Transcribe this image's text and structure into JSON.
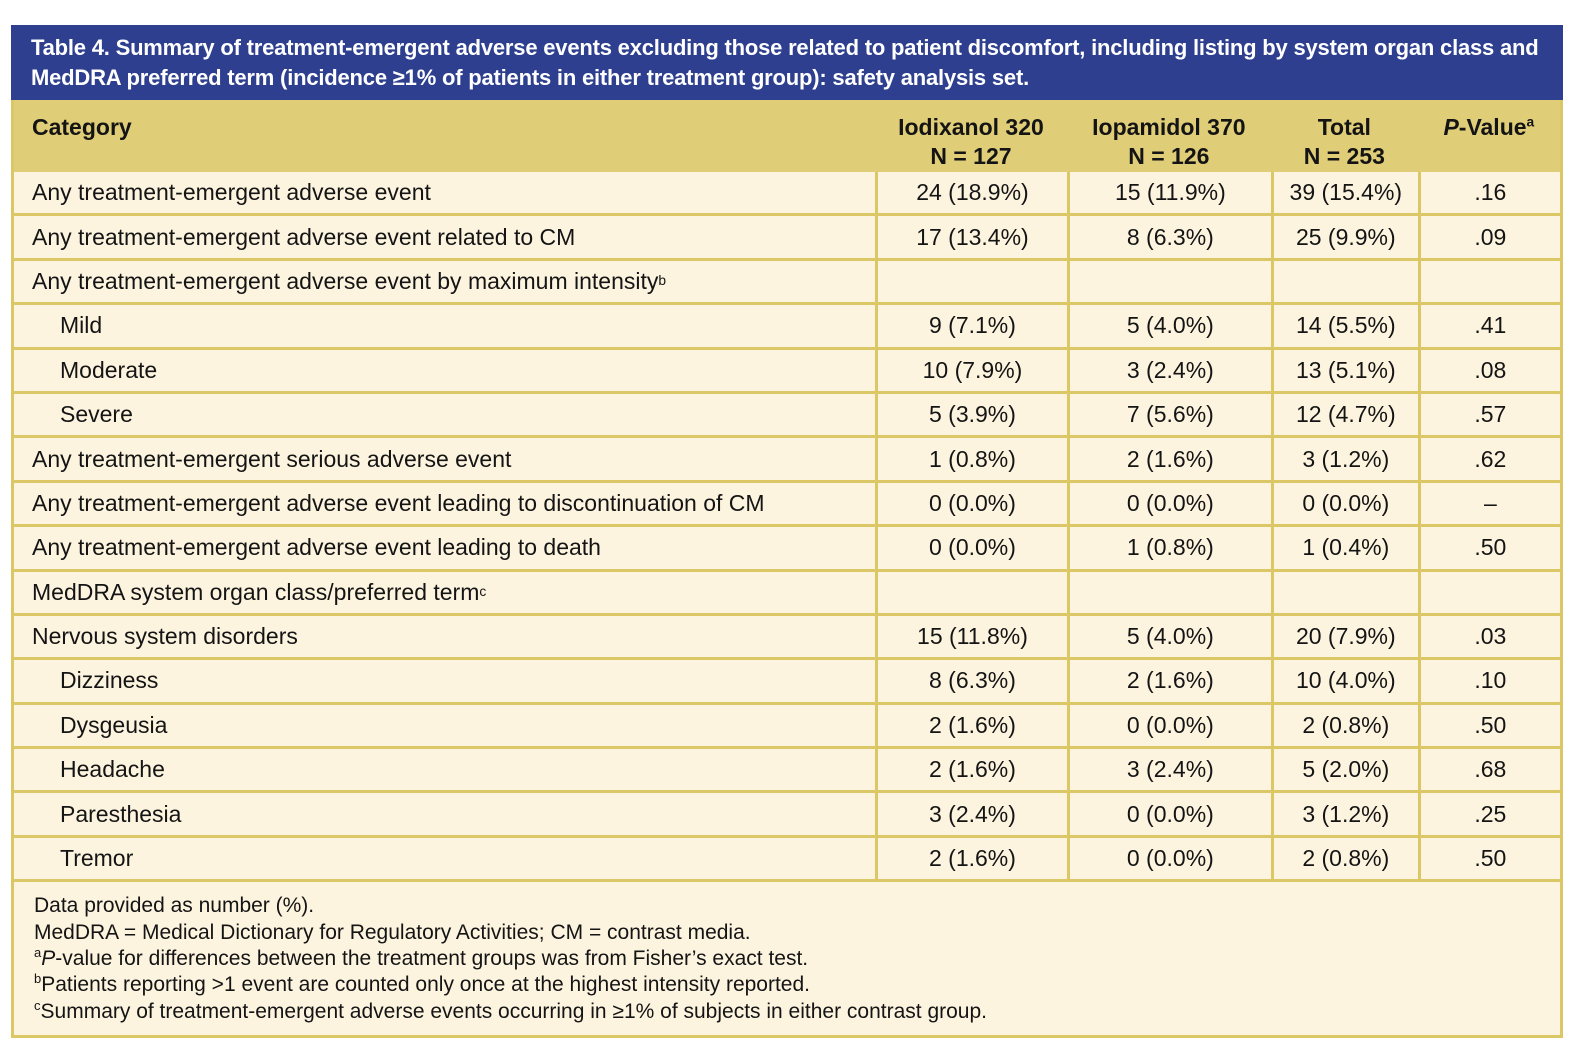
{
  "title": "Table 4. Summary of treatment-emergent adverse events excluding those related to patient discomfort, including listing by system organ class and MedDRA preferred term (incidence ≥1% of patients in either treatment group): safety analysis set.",
  "colors": {
    "title_bar": "#2D3F8E",
    "title_text": "#FFFFFF",
    "header_band": "#E0CD78",
    "row_background": "#FDF4E0",
    "grid_border": "#DCC766",
    "body_text": "#141414"
  },
  "table": {
    "columns": {
      "category": "Category",
      "group1": {
        "name": "Iodixanol 320",
        "n": "N = 127"
      },
      "group2": {
        "name": "Iopamidol 370",
        "n": "N = 126"
      },
      "group3": {
        "name": "Total",
        "n": "N = 253"
      },
      "pvalue": {
        "italic": "P",
        "rest": "-Value",
        "sup": "a"
      }
    },
    "rows": [
      {
        "label": "Any treatment-emergent adverse event",
        "sup": "",
        "c1": "24 (18.9%)",
        "c2": "15 (11.9%)",
        "c3": "39 (15.4%)",
        "p": ".16"
      },
      {
        "label": "Any treatment-emergent adverse event related to CM",
        "sup": "",
        "c1": "17 (13.4%)",
        "c2": "8 (6.3%)",
        "c3": "25 (9.9%)",
        "p": ".09"
      },
      {
        "label": "Any treatment-emergent adverse event by maximum intensity",
        "sup": "b",
        "c1": "",
        "c2": "",
        "c3": "",
        "p": ""
      },
      {
        "label": "Mild",
        "sup": "",
        "c1": "9 (7.1%)",
        "c2": "5 (4.0%)",
        "c3": "14 (5.5%)",
        "p": ".41"
      },
      {
        "label": "Moderate",
        "sup": "",
        "c1": "10 (7.9%)",
        "c2": "3 (2.4%)",
        "c3": "13 (5.1%)",
        "p": ".08"
      },
      {
        "label": "Severe",
        "sup": "",
        "c1": "5 (3.9%)",
        "c2": "7 (5.6%)",
        "c3": "12 (4.7%)",
        "p": ".57"
      },
      {
        "label": "Any treatment-emergent serious adverse event",
        "sup": "",
        "c1": "1 (0.8%)",
        "c2": "2 (1.6%)",
        "c3": "3 (1.2%)",
        "p": ".62"
      },
      {
        "label": "Any treatment-emergent adverse event leading to discontinuation of CM",
        "sup": "",
        "c1": "0 (0.0%)",
        "c2": "0 (0.0%)",
        "c3": "0 (0.0%)",
        "p": "–"
      },
      {
        "label": "Any treatment-emergent adverse event leading to death",
        "sup": "",
        "c1": "0 (0.0%)",
        "c2": "1 (0.8%)",
        "c3": "1 (0.4%)",
        "p": ".50"
      },
      {
        "label": "MedDRA system organ class/preferred term",
        "sup": "c",
        "c1": "",
        "c2": "",
        "c3": "",
        "p": ""
      },
      {
        "label": "Nervous system disorders",
        "sup": "",
        "c1": "15 (11.8%)",
        "c2": "5 (4.0%)",
        "c3": "20 (7.9%)",
        "p": ".03"
      },
      {
        "label": "Dizziness",
        "sup": "",
        "c1": "8 (6.3%)",
        "c2": "2 (1.6%)",
        "c3": "10 (4.0%)",
        "p": ".10"
      },
      {
        "label": "Dysgeusia",
        "sup": "",
        "c1": "2 (1.6%)",
        "c2": "0 (0.0%)",
        "c3": "2 (0.8%)",
        "p": ".50"
      },
      {
        "label": "Headache",
        "sup": "",
        "c1": "2 (1.6%)",
        "c2": "3 (2.4%)",
        "c3": "5 (2.0%)",
        "p": ".68"
      },
      {
        "label": "Paresthesia",
        "sup": "",
        "c1": "3 (2.4%)",
        "c2": "0 (0.0%)",
        "c3": "3 (1.2%)",
        "p": ".25"
      },
      {
        "label": "Tremor",
        "sup": "",
        "c1": "2 (1.6%)",
        "c2": "0 (0.0%)",
        "c3": "2 (0.8%)",
        "p": ".50"
      }
    ]
  },
  "footnotes": [
    {
      "sup": "",
      "italic": "",
      "text": "Data provided as number (%)."
    },
    {
      "sup": "",
      "italic": "",
      "text": "MedDRA = Medical Dictionary for Regulatory Activities; CM = contrast media."
    },
    {
      "sup": "a",
      "italic": "P",
      "text": "-value for differences between the treatment groups was from Fisher’s exact test."
    },
    {
      "sup": "b",
      "italic": "",
      "text": "Patients reporting >1 event are counted only once at the highest intensity reported."
    },
    {
      "sup": "c",
      "italic": "",
      "text": "Summary of treatment-emergent adverse events occurring in ≥1% of subjects in either contrast group."
    }
  ]
}
